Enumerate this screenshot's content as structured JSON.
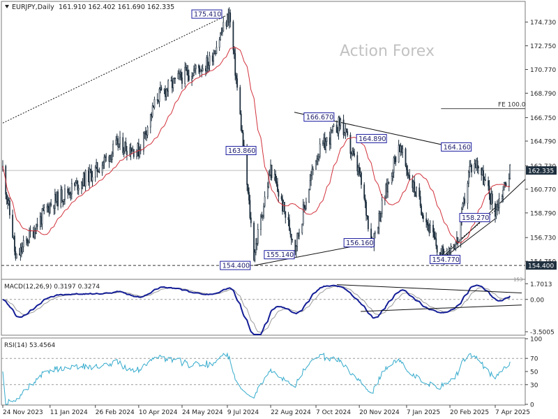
{
  "header": {
    "symbol": "EURJPY,Daily",
    "ohlc": "161.910 162.402 161.690 162.335",
    "watermark": "Action Forex"
  },
  "colors": {
    "candle": "#1e2f3e",
    "ma": "#d2323c",
    "box_border": "#1a1aa0",
    "current_price_bg": "#1e2f3e",
    "macd_line": "#141e96",
    "macd_signal": "#9a9a9a",
    "rsi_line": "#33aacc",
    "grid": "#c8c8c8"
  },
  "chart_data": [
    {
      "type": "candlestick",
      "name": "price",
      "yaxis_ticks": [
        "174.730",
        "172.750",
        "170.770",
        "168.790",
        "166.750",
        "164.790",
        "162.730",
        "160.770",
        "158.790",
        "156.730",
        "154.750"
      ],
      "ylim": [
        153.3,
        176.4
      ],
      "xaxis_ticks": [
        "24 Nov 2023",
        "11 Jan 2024",
        "26 Feb 2024",
        "10 Apr 2024",
        "24 May 2024",
        "9 Jul 2024",
        "22 Aug 2024",
        "7 Oct 2024",
        "20 Nov 2024",
        "7 Jan 2025",
        "20 Feb 2025",
        "7 Apr 2025"
      ],
      "current_price": "162.335",
      "support_level": "154.400",
      "fe_label": "FE 100.0",
      "left_cut_label": "153",
      "price_labels": [
        {
          "text": "175.410"
        },
        {
          "text": "166.670"
        },
        {
          "text": "164.890"
        },
        {
          "text": "164.160"
        },
        {
          "text": "163.860"
        },
        {
          "text": "158.270"
        },
        {
          "text": "156.160"
        },
        {
          "text": "155.140"
        },
        {
          "text": "154.400"
        },
        {
          "text": "154.770"
        }
      ],
      "anchors": [
        {
          "date": "24 Nov 2023",
          "close": 162.5
        },
        {
          "date": "5 Dec 2023",
          "close": 156.5
        },
        {
          "date": "7 Dec 2023",
          "close": 154.8
        },
        {
          "date": "22 Dec 2023",
          "close": 157.0
        },
        {
          "date": "11 Jan 2024",
          "close": 159.5
        },
        {
          "date": "26 Feb 2024",
          "close": 162.3
        },
        {
          "date": "20 Mar 2024",
          "close": 164.5
        },
        {
          "date": "10 Apr 2024",
          "close": 164.0
        },
        {
          "date": "29 Apr 2024",
          "close": 168.5
        },
        {
          "date": "24 May 2024",
          "close": 170.2
        },
        {
          "date": "20 Jun 2024",
          "close": 171.3
        },
        {
          "date": "11 Jul 2024",
          "close": 175.4
        },
        {
          "date": "25 Jul 2024",
          "close": 164.5
        },
        {
          "date": "5 Aug 2024",
          "close": 155.3
        },
        {
          "date": "22 Aug 2024",
          "close": 162.5
        },
        {
          "date": "16 Sep 2024",
          "close": 156.0
        },
        {
          "date": "7 Oct 2024",
          "close": 163.5
        },
        {
          "date": "1 Nov 2024",
          "close": 166.4
        },
        {
          "date": "20 Nov 2024",
          "close": 162.0
        },
        {
          "date": "3 Dec 2024",
          "close": 156.3
        },
        {
          "date": "30 Dec 2024",
          "close": 164.5
        },
        {
          "date": "7 Jan 2025",
          "close": 162.5
        },
        {
          "date": "10 Feb 2025",
          "close": 155.2
        },
        {
          "date": "28 Feb 2025",
          "close": 156.5
        },
        {
          "date": "12 Mar 2025",
          "close": 162.5
        },
        {
          "date": "20 Mar 2025",
          "close": 163.0
        },
        {
          "date": "7 Apr 2025",
          "close": 159.0
        },
        {
          "date": "22 Apr 2025",
          "close": 162.3
        }
      ]
    },
    {
      "type": "line",
      "name": "macd",
      "title": "MACD(12,26,9) 0.3197 0.3274",
      "yaxis_ticks": [
        "1.7013",
        "0.00",
        "-3.5005"
      ],
      "ylim": [
        -3.8,
        2.1
      ]
    },
    {
      "type": "line",
      "name": "rsi",
      "title": "RSI(14) 53.4564",
      "yaxis_ticks": [
        "100",
        "70",
        "50",
        "30",
        "0"
      ],
      "ylim": [
        0,
        100
      ],
      "levels": [
        70,
        30
      ]
    }
  ]
}
